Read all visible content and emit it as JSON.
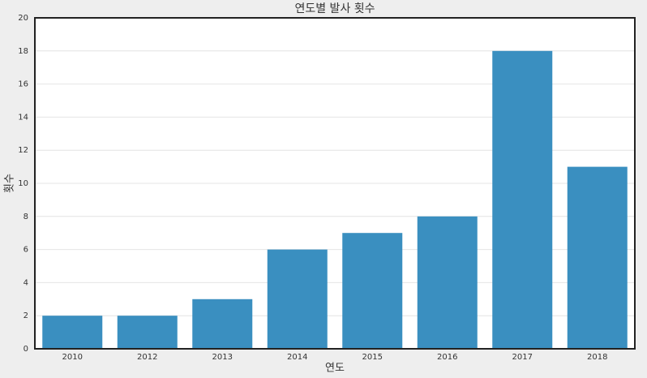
{
  "chart_data": {
    "type": "bar",
    "title": "연도별 발사 횟수",
    "x_label": "연도",
    "y_label": "횟수",
    "categories": [
      "2010",
      "2012",
      "2013",
      "2014",
      "2015",
      "2016",
      "2017",
      "2018"
    ],
    "values": [
      2,
      2,
      3,
      6,
      7,
      8,
      18,
      11
    ],
    "color": "#3a8fc0",
    "ylim": [
      0,
      20
    ],
    "yticks": [
      0,
      2,
      4,
      6,
      8,
      10,
      12,
      14,
      16,
      18,
      20
    ],
    "grid": true
  }
}
